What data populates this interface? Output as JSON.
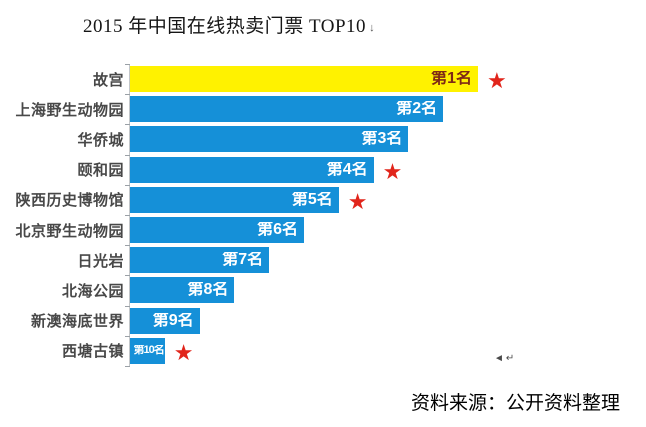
{
  "page": {
    "title": "2015 年中国在线热卖门票 TOP10",
    "title_mark": "↓",
    "stray_mark": "◄↵",
    "source": "资料来源：公开资料整理"
  },
  "colors": {
    "bar_blue": "#1590D8",
    "bar_yellow": "#FFF200",
    "star_red": "#E1251B",
    "rank1_text": "#7E2A15",
    "rank_text": "#FFFFFF",
    "category_text": "#484848"
  },
  "chart_data": {
    "type": "bar",
    "orientation": "horizontal",
    "title": "2015 年中国在线热卖门票 TOP10",
    "categories": [
      "故宫",
      "上海野生动物园",
      "华侨城",
      "颐和园",
      "陕西历史博物馆",
      "北京野生动物园",
      "日光岩",
      "北海公园",
      "新澳海底世界",
      "西塘古镇"
    ],
    "values": [
      10,
      9,
      8,
      7,
      6,
      5,
      4,
      3,
      2,
      1
    ],
    "bar_labels": [
      "第1名",
      "第2名",
      "第3名",
      "第4名",
      "第5名",
      "第6名",
      "第7名",
      "第8名",
      "第9名",
      "第10名"
    ],
    "starred_ranks": [
      1,
      4,
      5,
      10
    ],
    "xlabel": "",
    "ylabel": "",
    "xlim": [
      0,
      10
    ],
    "grid": false,
    "legend": false,
    "value_note": "no numeric axis shown; values are relative bar lengths by rank"
  }
}
